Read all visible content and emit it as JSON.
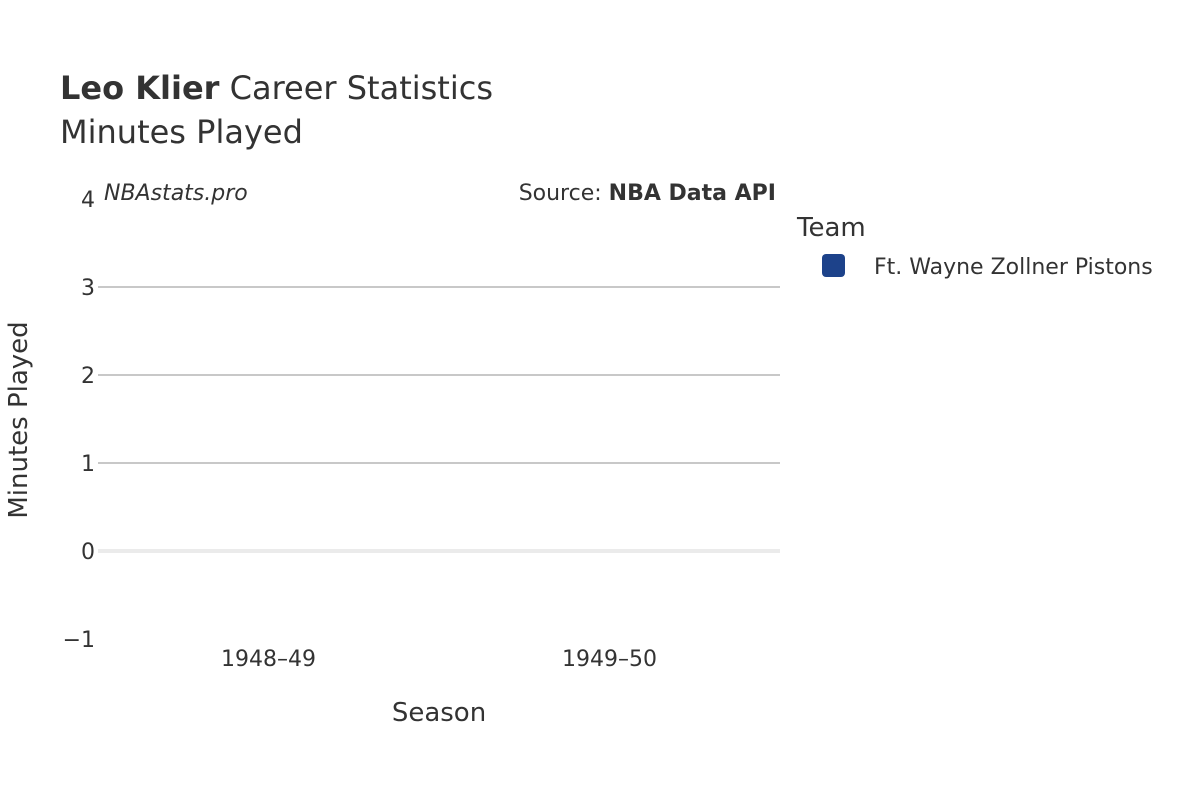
{
  "header": {
    "title_bold": "Leo Klier",
    "title_rest": " Career Statistics",
    "subtitle": "Minutes Played"
  },
  "watermark": "NBAstats.pro",
  "source": {
    "prefix": "Source: ",
    "name": "NBA Data API"
  },
  "legend": {
    "title": "Team",
    "items": [
      {
        "label": "Ft. Wayne Zollner Pistons",
        "color": "#1d428a"
      }
    ]
  },
  "colors": {
    "grid": "#c8c8c8",
    "zero_line": "#ebebeb",
    "text": "#333333"
  },
  "chart_data": {
    "type": "bar",
    "title": "Leo Klier Career Statistics",
    "subtitle": "Minutes Played",
    "xlabel": "Season",
    "ylabel": "Minutes Played",
    "categories": [
      "1948–49",
      "1949–50"
    ],
    "series": [
      {
        "name": "Ft. Wayne Zollner Pistons",
        "values": [
          0,
          0
        ]
      }
    ],
    "ylim": [
      -1,
      4
    ],
    "yticks": [
      -1,
      0,
      1,
      2,
      3,
      4
    ],
    "ytick_labels": [
      "−1",
      "0",
      "1",
      "2",
      "3",
      "4"
    ],
    "grid": true,
    "legend_position": "right"
  }
}
